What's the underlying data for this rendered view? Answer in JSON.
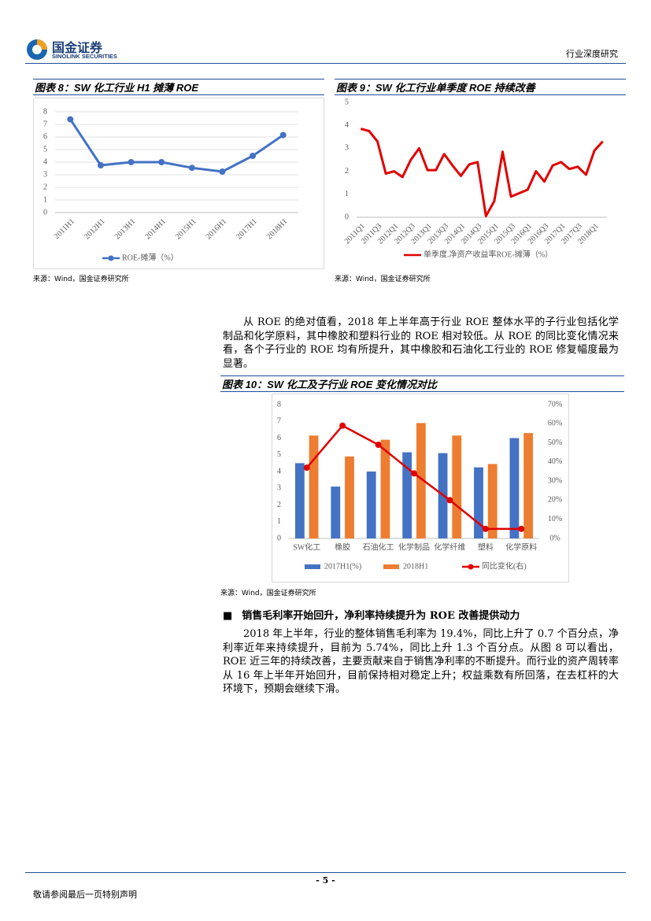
{
  "header": {
    "logo_cn": "国金证券",
    "logo_en": "SINOLINK SECURITIES",
    "report_type": "行业深度研究"
  },
  "chart_data": [
    {
      "type": "line",
      "title": "图表 8：SW 化工行业 H1 摊薄 ROE",
      "source": "来源：Wind，国金证券研究所",
      "categories": [
        "2011H1",
        "2012H1",
        "2013H1",
        "2014H1",
        "2015H1",
        "2016H1",
        "2017H1",
        "2018H1"
      ],
      "series": [
        {
          "name": "ROE-摊薄（%）",
          "color": "#4472c4",
          "values": [
            7.4,
            3.75,
            4.0,
            4.0,
            3.55,
            3.25,
            4.5,
            6.15
          ]
        }
      ],
      "ylim": [
        0,
        8
      ],
      "yticks": [
        0,
        1,
        2,
        3,
        4,
        5,
        6,
        7,
        8
      ],
      "grid": true,
      "markers": true
    },
    {
      "type": "line",
      "title": "图表 9：SW 化工行业单季度 ROE 持续改善",
      "source": "来源：Wind，国金证券研究所",
      "categories": [
        "2011Q1",
        null,
        "2011Q3",
        null,
        "2012Q1",
        null,
        "2012Q3",
        null,
        "2013Q1",
        null,
        "2013Q3",
        null,
        "2014Q1",
        null,
        "2014Q3",
        null,
        "2015Q1",
        null,
        "2015Q3",
        null,
        "2016Q1",
        null,
        "2016Q3",
        null,
        "2017Q1",
        null,
        "2017Q3",
        null,
        "2018Q1",
        null
      ],
      "series": [
        {
          "name": "单季度.净资产收益率ROE-摊薄（%）",
          "color": "#e00000",
          "values": [
            3.85,
            3.75,
            3.3,
            1.9,
            2.0,
            1.75,
            2.5,
            3.0,
            2.05,
            2.05,
            2.75,
            2.25,
            1.8,
            2.3,
            2.4,
            0.05,
            0.7,
            2.85,
            0.9,
            1.05,
            1.2,
            2.0,
            1.55,
            2.25,
            2.4,
            2.1,
            2.2,
            1.85,
            2.9,
            3.3
          ]
        }
      ],
      "ylim": [
        0,
        5
      ],
      "yticks": [
        0,
        1,
        2,
        3,
        4,
        5
      ],
      "grid": false,
      "markers": false
    },
    {
      "type": "bar",
      "title": "图表 10：SW 化工及子行业 ROE 变化情况对比",
      "source": "来源：Wind，国金证券研究所",
      "categories": [
        "SW化工",
        "橡胶",
        "石油化工",
        "化学制品",
        "化学纤维",
        "塑料",
        "化学原料"
      ],
      "series": [
        {
          "name": "2017H1(%)",
          "color": "#4472c4",
          "values": [
            4.5,
            3.1,
            4.0,
            5.15,
            5.1,
            4.25,
            6.0
          ]
        },
        {
          "name": "2018H1",
          "color": "#ed7d31",
          "values": [
            6.15,
            4.9,
            5.9,
            6.9,
            6.15,
            4.45,
            6.3
          ]
        },
        {
          "name": "同比变化(右)",
          "color": "#e00000",
          "type": "line",
          "axis": "y2",
          "values": [
            37,
            59,
            49,
            34,
            20,
            5,
            5
          ]
        }
      ],
      "ylim": [
        0,
        8
      ],
      "yticks": [
        0,
        1,
        2,
        3,
        4,
        5,
        6,
        7,
        8
      ],
      "y2lim": [
        0,
        70
      ],
      "y2ticks": [
        {
          "value": 0,
          "label": "0%"
        },
        {
          "value": 10,
          "label": "10%"
        },
        {
          "value": 20,
          "label": "20%"
        },
        {
          "value": 30,
          "label": "30%"
        },
        {
          "value": 40,
          "label": "40%"
        },
        {
          "value": 50,
          "label": "50%"
        },
        {
          "value": 60,
          "label": "60%"
        },
        {
          "value": 70,
          "label": "70%"
        }
      ],
      "grid": false,
      "markers": true
    }
  ],
  "body": {
    "paragraph_1": "从 ROE 的绝对值看，2018 年上半年高于行业 ROE 整体水平的子行业包括化学制品和化学原料，其中橡胶和塑料行业的 ROE 相对较低。从 ROE 的同比变化情况来看，各个子行业的 ROE 均有所提升，其中橡胶和石油化工行业的 ROE 修复幅度最为显著。",
    "heading": "销售毛利率开始回升，净利率持续提升为 ROE 改善提供动力",
    "paragraph_2": "2018 年上半年，行业的整体销售毛利率为 19.4%，同比上升了 0.7 个百分点，净利率近年来持续提升，目前为 5.74%，同比上升 1.3 个百分点。从图 8 可以看出，ROE 近三年的持续改善，主要贡献来自于销售净利率的不断提升。而行业的资产周转率从 16 年上半年开始回升，目前保持相对稳定上升；权益乘数有所回落，在去杠杆的大环境下，预期会继续下滑。"
  },
  "footer": {
    "page": "- 5 -",
    "disclaimer": "敬请参阅最后一页特别声明"
  }
}
